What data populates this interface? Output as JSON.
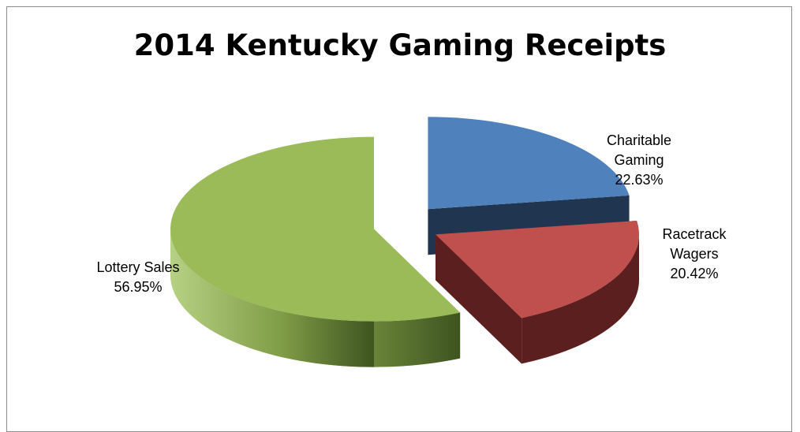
{
  "chart_data": {
    "type": "pie",
    "title": "2014 Kentucky Gaming Receipts",
    "slices": [
      {
        "label_lines": [
          "Charitable",
          "Gaming"
        ],
        "value": 22.63,
        "value_text": "22.63%",
        "color": "#4f81bd",
        "side_color": "#1f3550"
      },
      {
        "label_lines": [
          "Racetrack",
          "Wagers"
        ],
        "value": 20.42,
        "value_text": "20.42%",
        "color": "#c0504d",
        "side_color": "#5a1f1e"
      },
      {
        "label_lines": [
          "Lottery Sales"
        ],
        "value": 56.95,
        "value_text": "56.95%",
        "color": "#9bbb59",
        "side_color": "#5a7a2a"
      }
    ],
    "exploded": true,
    "view": "3d",
    "legend": "none"
  }
}
